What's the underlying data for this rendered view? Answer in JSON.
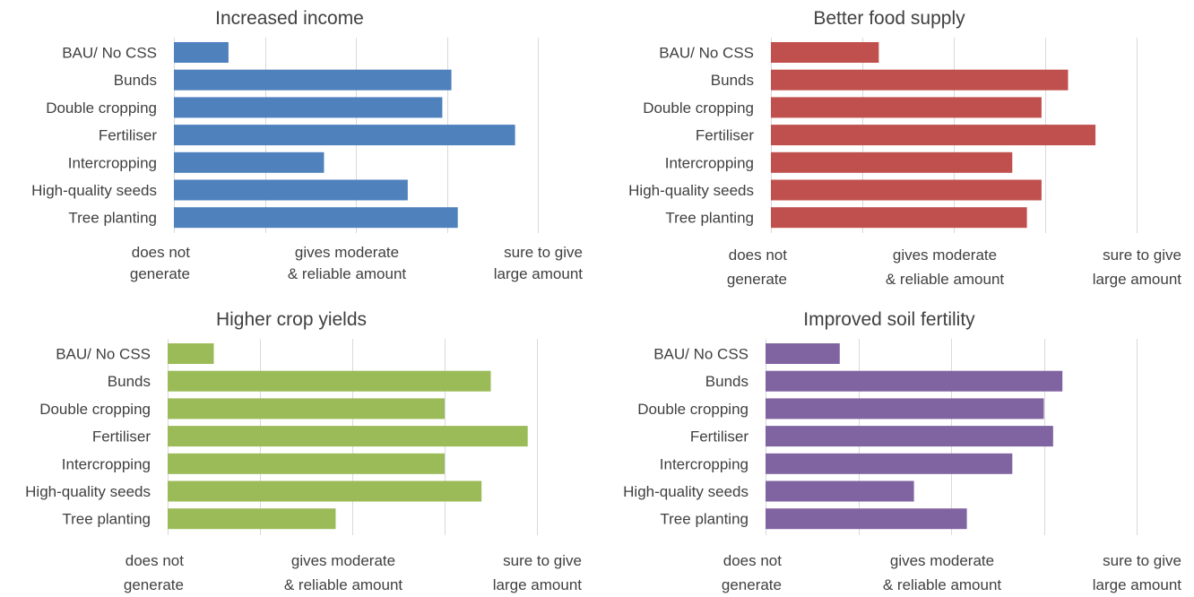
{
  "chart_data": [
    {
      "type": "bar",
      "orientation": "horizontal",
      "title": "Increased income",
      "categories": [
        "BAU/ No CSS",
        "Bunds",
        "Double cropping",
        "Fertiliser",
        "Intercropping",
        "High-quality seeds",
        "Tree planting"
      ],
      "values": [
        0.6,
        3.05,
        2.95,
        3.75,
        1.65,
        2.57,
        3.12
      ],
      "xlim": [
        0,
        4
      ],
      "x_tick_labels": [
        [
          "does not",
          "generate"
        ],
        [
          "gives moderate",
          "& reliable amount"
        ],
        [
          "sure to give",
          "large amount"
        ]
      ],
      "x_tick_values": [
        0,
        2,
        4
      ],
      "grid": true,
      "color": "#4f81bd"
    },
    {
      "type": "bar",
      "orientation": "horizontal",
      "title": "Better food supply",
      "categories": [
        "BAU/ No CSS",
        "Bunds",
        "Double cropping",
        "Fertiliser",
        "Intercropping",
        "High-quality seeds",
        "Tree planting"
      ],
      "values": [
        1.18,
        3.25,
        2.96,
        3.55,
        2.64,
        2.96,
        2.8
      ],
      "xlim": [
        0,
        4
      ],
      "x_tick_labels": [
        [
          "does not",
          "generate"
        ],
        [
          "gives moderate",
          "& reliable amount"
        ],
        [
          "sure to give",
          "large amount"
        ]
      ],
      "x_tick_values": [
        0,
        2,
        4
      ],
      "grid": true,
      "color": "#c0504d"
    },
    {
      "type": "bar",
      "orientation": "horizontal",
      "title": "Higher crop yields",
      "categories": [
        "BAU/ No CSS",
        "Bunds",
        "Double cropping",
        "Fertiliser",
        "Intercropping",
        "High-quality seeds",
        "Tree planting"
      ],
      "values": [
        0.5,
        3.5,
        3.0,
        3.9,
        3.0,
        3.4,
        1.82
      ],
      "xlim": [
        0,
        4
      ],
      "x_tick_labels": [
        [
          "does not",
          "generate"
        ],
        [
          "gives moderate",
          "& reliable amount"
        ],
        [
          "sure to give",
          "large amount"
        ]
      ],
      "x_tick_values": [
        0,
        2,
        4
      ],
      "grid": true,
      "color": "#9bbb59"
    },
    {
      "type": "bar",
      "orientation": "horizontal",
      "title": "Improved soil fertility",
      "categories": [
        "BAU/ No CSS",
        "Bunds",
        "Double cropping",
        "Fertiliser",
        "Intercropping",
        "High-quality seeds",
        "Tree planting"
      ],
      "values": [
        0.8,
        3.2,
        3.0,
        3.1,
        2.66,
        1.6,
        2.17
      ],
      "xlim": [
        0,
        4
      ],
      "x_tick_labels": [
        [
          "does not",
          "generate"
        ],
        [
          "gives moderate",
          "& reliable amount"
        ],
        [
          "sure to give",
          "large amount"
        ]
      ],
      "x_tick_values": [
        0,
        2,
        4
      ],
      "grid": true,
      "color": "#8064a2"
    }
  ]
}
